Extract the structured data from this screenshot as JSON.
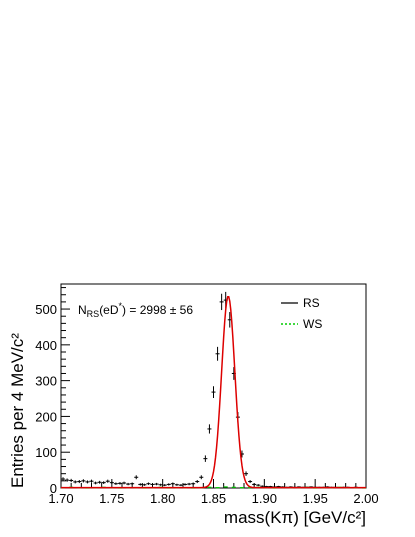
{
  "chart_data": {
    "type": "scatter",
    "xlabel": "mass(Kπ) [GeV/c²]",
    "ylabel": "Entries per 4 MeV/c²",
    "xlim": [
      1.7,
      2.0
    ],
    "ylim": [
      0,
      570
    ],
    "x_ticks": [
      "1.70",
      "1.75",
      "1.80",
      "1.85",
      "1.90",
      "1.95",
      "2.00"
    ],
    "y_ticks": [
      "0",
      "100",
      "200",
      "300",
      "400",
      "500"
    ],
    "annotation": "N_RS(eD*) = 2998 ± 56",
    "legend": {
      "placement": "top-right",
      "entries": [
        "RS",
        "WS"
      ]
    },
    "colors": {
      "rs": "#000000",
      "ws": "#00cc00",
      "fit": "#dd0000"
    },
    "series": [
      {
        "name": "RS",
        "x": [
          1.702,
          1.706,
          1.71,
          1.714,
          1.718,
          1.722,
          1.726,
          1.73,
          1.734,
          1.738,
          1.742,
          1.746,
          1.75,
          1.754,
          1.758,
          1.762,
          1.766,
          1.77,
          1.774,
          1.778,
          1.782,
          1.786,
          1.79,
          1.794,
          1.798,
          1.802,
          1.806,
          1.81,
          1.814,
          1.818,
          1.822,
          1.826,
          1.83,
          1.834,
          1.838,
          1.842,
          1.846,
          1.85,
          1.854,
          1.858,
          1.862,
          1.866,
          1.87,
          1.874,
          1.878,
          1.882,
          1.886,
          1.89,
          1.894,
          1.898,
          1.902,
          1.906,
          1.91,
          1.914,
          1.918,
          1.922,
          1.926,
          1.93,
          1.934,
          1.938,
          1.942,
          1.946,
          1.95,
          1.954,
          1.958,
          1.962,
          1.966,
          1.97,
          1.974,
          1.978,
          1.982,
          1.986,
          1.99,
          1.994,
          1.998
        ],
        "values": [
          25,
          22,
          21,
          17,
          18,
          20,
          17,
          19,
          14,
          16,
          15,
          19,
          15,
          12,
          13,
          14,
          11,
          12,
          30,
          10,
          9,
          12,
          10,
          11,
          9,
          8,
          10,
          12,
          9,
          8,
          10,
          11,
          12,
          18,
          30,
          82,
          165,
          268,
          375,
          520,
          525,
          470,
          320,
          198,
          95,
          40,
          18,
          10,
          8,
          5,
          4,
          4,
          3,
          4,
          3,
          2,
          3,
          2,
          3,
          2,
          2,
          3,
          2,
          2,
          2,
          3,
          2,
          2,
          1,
          2,
          2,
          1,
          2,
          1,
          1
        ],
        "color": "#000000"
      },
      {
        "name": "WS",
        "x": [
          1.702,
          1.71,
          1.718,
          1.726,
          1.734,
          1.742,
          1.75,
          1.758,
          1.766,
          1.774,
          1.782,
          1.79,
          1.798,
          1.806,
          1.814,
          1.822,
          1.83,
          1.838,
          1.846,
          1.854,
          1.862,
          1.87,
          1.878,
          1.886,
          1.894,
          1.902,
          1.91,
          1.918,
          1.926,
          1.934,
          1.942,
          1.95,
          1.958,
          1.966,
          1.974,
          1.982,
          1.99,
          1.998
        ],
        "values": [
          1,
          2,
          1,
          0,
          1,
          2,
          1,
          0,
          1,
          1,
          0,
          1,
          2,
          0,
          1,
          1,
          0,
          1,
          2,
          1,
          3,
          2,
          1,
          1,
          2,
          1,
          0,
          2,
          1,
          1,
          2,
          0,
          1,
          1,
          2,
          1,
          1,
          0
        ],
        "color": "#00cc00"
      }
    ],
    "fit": {
      "name": "fit",
      "mean": 1.8645,
      "sigma": 0.0065,
      "amplitude": 535,
      "baseline": 1,
      "color": "#dd0000"
    }
  }
}
